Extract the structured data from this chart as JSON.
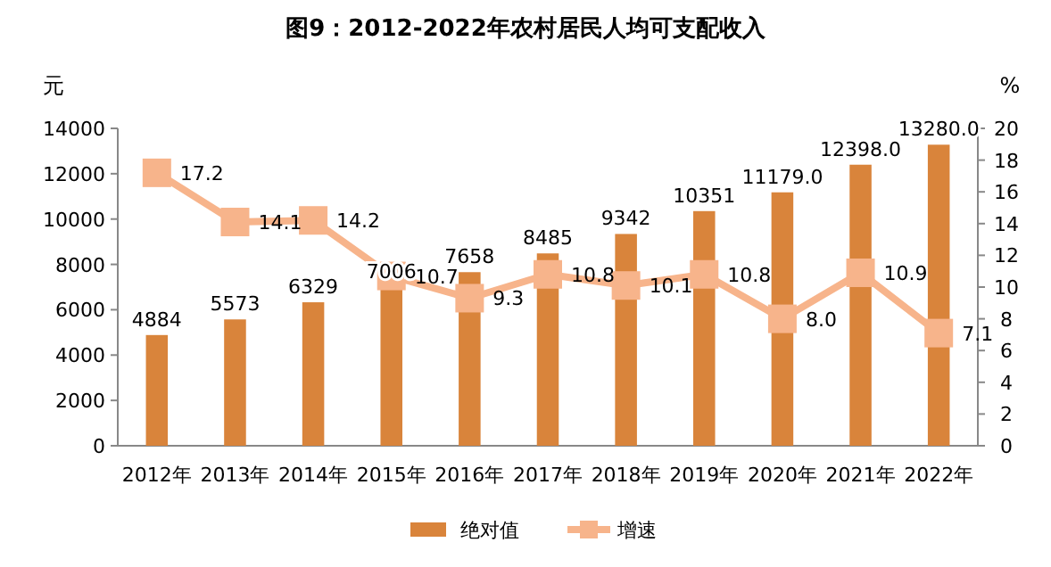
{
  "chart_data": {
    "type": "bar",
    "title": "图9：2012-2022年农村居民人均可支配收入",
    "ylabel": "元",
    "y2label": "%",
    "categories": [
      "2012年",
      "2013年",
      "2014年",
      "2015年",
      "2016年",
      "2017年",
      "2018年",
      "2019年",
      "2020年",
      "2021年",
      "2022年"
    ],
    "series": [
      {
        "name": "绝对值",
        "color": "#d9843b",
        "values": [
          4884,
          5573,
          6329,
          7006,
          7658,
          8485,
          9342,
          10351,
          11179.0,
          12398.0,
          13280.0
        ],
        "value_labels": [
          "4884",
          "5573",
          "6329",
          "7006",
          "7658",
          "8485",
          "9342",
          "10351",
          "11179.0",
          "12398.0",
          "13280.0"
        ]
      },
      {
        "name": "增速",
        "type": "line",
        "axis": "y2",
        "color": "#f7b48b",
        "marker": "square",
        "values": [
          17.2,
          14.1,
          14.2,
          10.7,
          9.3,
          10.8,
          10.1,
          10.8,
          8.0,
          10.9,
          7.1
        ],
        "value_labels": [
          "17.2",
          "14.1",
          "14.2",
          "10.7",
          "9.3",
          "10.8",
          "10.1",
          "10.8",
          "8.0",
          "10.9",
          "7.1"
        ]
      }
    ],
    "ylim": [
      0,
      14000
    ],
    "yticks": [
      0,
      2000,
      4000,
      6000,
      8000,
      10000,
      12000,
      14000
    ],
    "y2lim": [
      0,
      20
    ],
    "y2ticks": [
      0,
      2,
      4,
      6,
      8,
      10,
      12,
      14,
      16,
      18,
      20
    ],
    "grid": false,
    "legend": "bottom"
  }
}
